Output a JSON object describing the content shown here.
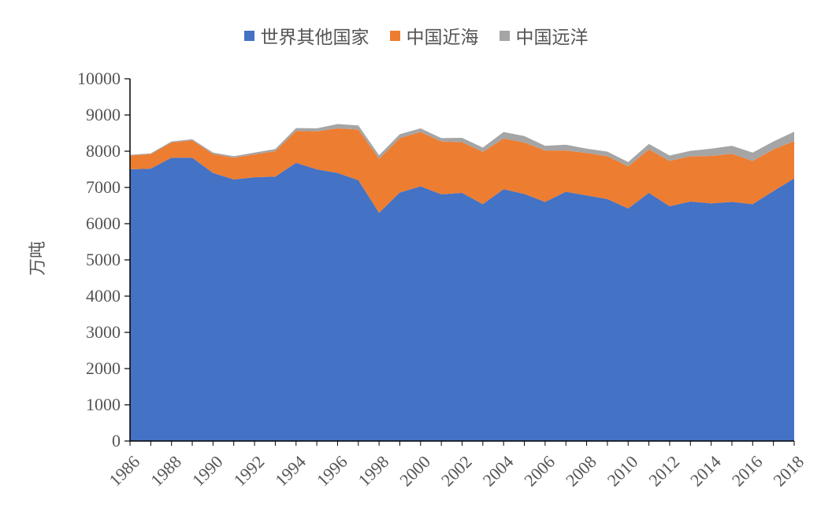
{
  "chart_data": {
    "type": "area",
    "stacked": true,
    "title": "",
    "xlabel": "",
    "ylabel": "万吨",
    "ylim": [
      0,
      10000
    ],
    "yticks": [
      0,
      1000,
      2000,
      3000,
      4000,
      5000,
      6000,
      7000,
      8000,
      9000,
      10000
    ],
    "xticks": [
      "1986",
      "1988",
      "1990",
      "1992",
      "1994",
      "1996",
      "1998",
      "2000",
      "2002",
      "2004",
      "2006",
      "2008",
      "2010",
      "2012",
      "2014",
      "2016",
      "2018"
    ],
    "grid": false,
    "legend_position": "top",
    "x": [
      1986,
      1987,
      1988,
      1989,
      1990,
      1991,
      1992,
      1993,
      1994,
      1995,
      1996,
      1997,
      1998,
      1999,
      2000,
      2001,
      2002,
      2003,
      2004,
      2005,
      2006,
      2007,
      2008,
      2009,
      2010,
      2011,
      2012,
      2013,
      2014,
      2015,
      2016,
      2017,
      2018
    ],
    "series": [
      {
        "name": "世界其他国家",
        "color": "#4472c4",
        "values": [
          7500,
          7520,
          7820,
          7820,
          7400,
          7220,
          7280,
          7300,
          7680,
          7500,
          7400,
          7200,
          6300,
          6860,
          7030,
          6810,
          6850,
          6540,
          6950,
          6820,
          6600,
          6880,
          6780,
          6680,
          6420,
          6850,
          6480,
          6610,
          6560,
          6600,
          6540,
          6900,
          7250
        ]
      },
      {
        "name": "中国近海",
        "color": "#ed7d31",
        "values": [
          380,
          400,
          420,
          480,
          520,
          600,
          630,
          700,
          880,
          1050,
          1230,
          1400,
          1490,
          1500,
          1500,
          1460,
          1400,
          1440,
          1400,
          1420,
          1420,
          1140,
          1170,
          1180,
          1160,
          1200,
          1250,
          1250,
          1310,
          1330,
          1190,
          1150,
          1030
        ]
      },
      {
        "name": "中国远洋",
        "color": "#a5a5a5",
        "values": [
          20,
          20,
          30,
          30,
          40,
          40,
          50,
          60,
          80,
          80,
          120,
          110,
          100,
          110,
          100,
          90,
          120,
          120,
          180,
          180,
          130,
          160,
          120,
          130,
          120,
          150,
          150,
          150,
          200,
          220,
          230,
          220,
          260
        ]
      }
    ]
  }
}
